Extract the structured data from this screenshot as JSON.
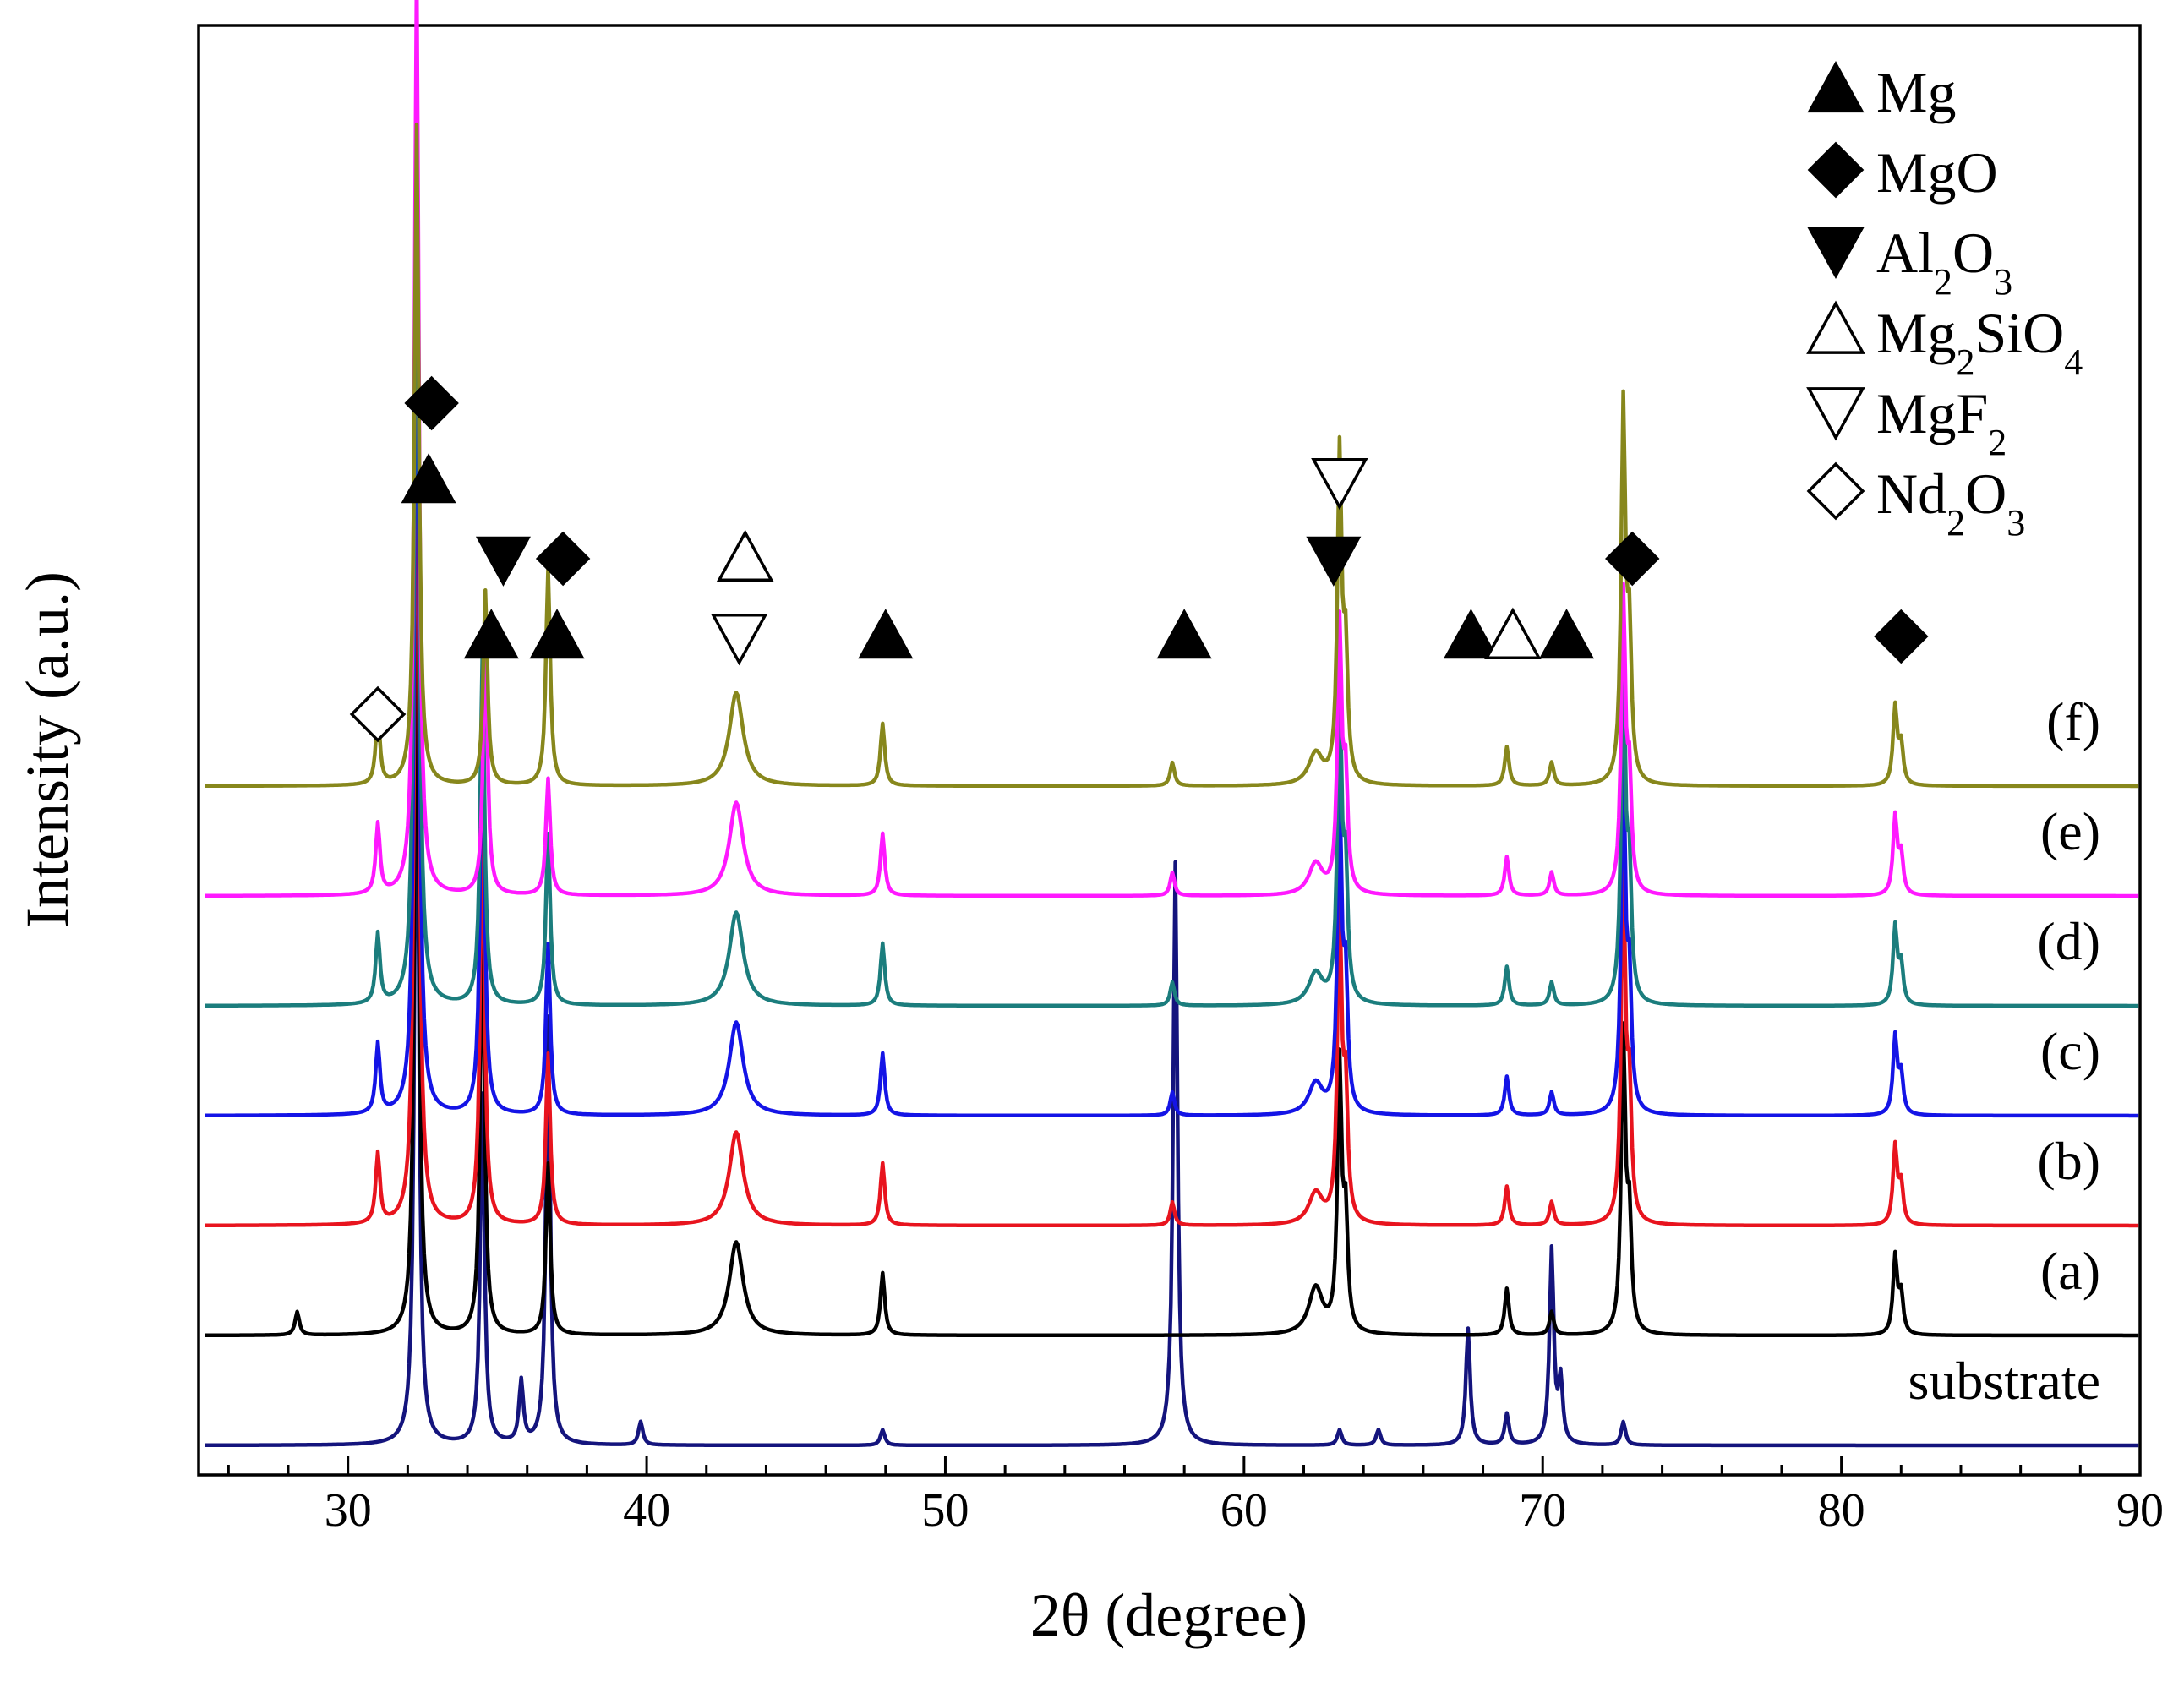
{
  "chart_data": {
    "type": "line",
    "title": "",
    "xlabel": "2θ  (degree)",
    "ylabel": "Intensity (a.u.)",
    "xlim": [
      25,
      90
    ],
    "xticks": [
      30,
      40,
      50,
      60,
      70,
      80,
      90
    ],
    "grid": false,
    "series": [
      {
        "name": "substrate",
        "label": "substrate",
        "color": "#14147d",
        "offset": 0,
        "peaks": [
          [
            32.3,
            100
          ],
          [
            34.5,
            45
          ],
          [
            35.8,
            8
          ],
          [
            36.7,
            55
          ],
          [
            39.8,
            3
          ],
          [
            47.9,
            2
          ],
          [
            57.7,
            75
          ],
          [
            63.2,
            2
          ],
          [
            64.5,
            2
          ],
          [
            67.5,
            15
          ],
          [
            68.8,
            4
          ],
          [
            70.3,
            25
          ],
          [
            70.6,
            8
          ],
          [
            72.7,
            3
          ]
        ]
      },
      {
        "name": "a",
        "label": "(a)",
        "color": "#000000",
        "offset": 1,
        "peaks": [
          [
            28.3,
            3
          ],
          [
            32.3,
            100
          ],
          [
            34.5,
            55
          ],
          [
            36.7,
            22
          ],
          [
            43.0,
            12
          ],
          [
            47.9,
            8
          ],
          [
            62.4,
            6
          ],
          [
            63.2,
            34
          ],
          [
            63.4,
            14
          ],
          [
            68.8,
            6
          ],
          [
            70.3,
            3
          ],
          [
            72.7,
            38
          ],
          [
            72.9,
            14
          ],
          [
            81.8,
            10
          ],
          [
            82.0,
            5
          ]
        ]
      },
      {
        "name": "b",
        "label": "(b)",
        "color": "#e8141e",
        "offset": 2,
        "peaks": [
          [
            31.0,
            9
          ],
          [
            32.3,
            120
          ],
          [
            34.5,
            55
          ],
          [
            36.7,
            22
          ],
          [
            43.0,
            12
          ],
          [
            47.9,
            8
          ],
          [
            57.6,
            3
          ],
          [
            62.4,
            4
          ],
          [
            63.2,
            40
          ],
          [
            63.4,
            16
          ],
          [
            68.8,
            5
          ],
          [
            70.3,
            3
          ],
          [
            72.7,
            44
          ],
          [
            72.9,
            16
          ],
          [
            81.8,
            10
          ],
          [
            82.0,
            5
          ]
        ]
      },
      {
        "name": "c",
        "label": "(c)",
        "color": "#1414e6",
        "offset": 3,
        "peaks": [
          [
            31.0,
            9
          ],
          [
            32.3,
            120
          ],
          [
            34.5,
            55
          ],
          [
            36.7,
            22
          ],
          [
            43.0,
            12
          ],
          [
            47.9,
            8
          ],
          [
            57.6,
            3
          ],
          [
            62.4,
            4
          ],
          [
            63.2,
            40
          ],
          [
            63.4,
            16
          ],
          [
            68.8,
            5
          ],
          [
            70.3,
            3
          ],
          [
            72.7,
            44
          ],
          [
            72.9,
            16
          ],
          [
            81.8,
            10
          ],
          [
            82.0,
            5
          ]
        ]
      },
      {
        "name": "d",
        "label": "(d)",
        "color": "#1b7d7d",
        "offset": 4,
        "peaks": [
          [
            31.0,
            9
          ],
          [
            32.3,
            120
          ],
          [
            34.5,
            45
          ],
          [
            36.7,
            22
          ],
          [
            43.0,
            12
          ],
          [
            47.9,
            8
          ],
          [
            57.6,
            3
          ],
          [
            62.4,
            4
          ],
          [
            63.2,
            40
          ],
          [
            63.4,
            16
          ],
          [
            68.8,
            5
          ],
          [
            70.3,
            3
          ],
          [
            72.7,
            44
          ],
          [
            72.9,
            16
          ],
          [
            81.8,
            10
          ],
          [
            82.0,
            5
          ]
        ]
      },
      {
        "name": "e",
        "label": "(e)",
        "color": "#ff19ff",
        "offset": 5,
        "peaks": [
          [
            31.0,
            9
          ],
          [
            32.3,
            120
          ],
          [
            34.6,
            35
          ],
          [
            36.7,
            15
          ],
          [
            43.0,
            12
          ],
          [
            47.9,
            8
          ],
          [
            57.6,
            3
          ],
          [
            62.4,
            4
          ],
          [
            63.2,
            34
          ],
          [
            63.4,
            14
          ],
          [
            68.8,
            5
          ],
          [
            70.3,
            3
          ],
          [
            72.7,
            38
          ],
          [
            72.9,
            14
          ],
          [
            81.8,
            10
          ],
          [
            82.0,
            5
          ]
        ]
      },
      {
        "name": "f",
        "label": "(f)",
        "color": "#87871c",
        "offset": 6,
        "peaks": [
          [
            31.0,
            9
          ],
          [
            32.3,
            85
          ],
          [
            34.6,
            25
          ],
          [
            36.7,
            28
          ],
          [
            43.0,
            12
          ],
          [
            47.9,
            8
          ],
          [
            57.6,
            3
          ],
          [
            62.4,
            4
          ],
          [
            63.2,
            42
          ],
          [
            63.4,
            16
          ],
          [
            68.8,
            5
          ],
          [
            70.3,
            3
          ],
          [
            72.7,
            48
          ],
          [
            72.9,
            18
          ],
          [
            81.8,
            10
          ],
          [
            82.0,
            5
          ]
        ]
      }
    ],
    "annotations": [
      {
        "phase": "MgO",
        "symbol": "diamond-filled",
        "x": 32.8,
        "level": 4
      },
      {
        "phase": "Mg",
        "symbol": "triangle-up-filled",
        "x": 32.7,
        "level": 3
      },
      {
        "phase": "Al2O3",
        "symbol": "triangle-down-filled",
        "x": 35.2,
        "level": 2
      },
      {
        "phase": "MgO",
        "symbol": "diamond-filled",
        "x": 37.2,
        "level": 2
      },
      {
        "phase": "Mg",
        "symbol": "triangle-up-filled",
        "x": 34.8,
        "level": 1
      },
      {
        "phase": "Mg",
        "symbol": "triangle-up-filled",
        "x": 37.0,
        "level": 1
      },
      {
        "phase": "Nd2O3",
        "symbol": "diamond-open",
        "x": 31.0,
        "level": 0
      },
      {
        "phase": "Mg2SiO4",
        "symbol": "triangle-up-open",
        "x": 43.3,
        "level": 2
      },
      {
        "phase": "MgF2",
        "symbol": "triangle-down-open",
        "x": 43.1,
        "level": 1
      },
      {
        "phase": "Mg",
        "symbol": "triangle-up-filled",
        "x": 48.0,
        "level": 1
      },
      {
        "phase": "Mg",
        "symbol": "triangle-up-filled",
        "x": 58.0,
        "level": 1
      },
      {
        "phase": "MgF2",
        "symbol": "triangle-down-open",
        "x": 63.2,
        "level": 3
      },
      {
        "phase": "Al2O3",
        "symbol": "triangle-down-filled",
        "x": 63.0,
        "level": 2
      },
      {
        "phase": "Mg",
        "symbol": "triangle-up-filled",
        "x": 67.6,
        "level": 1
      },
      {
        "phase": "Mg2SiO4",
        "symbol": "triangle-up-open",
        "x": 69.0,
        "level": 1
      },
      {
        "phase": "Mg",
        "symbol": "triangle-up-filled",
        "x": 70.8,
        "level": 1
      },
      {
        "phase": "MgO",
        "symbol": "diamond-filled",
        "x": 73.0,
        "level": 2
      },
      {
        "phase": "MgO",
        "symbol": "diamond-filled",
        "x": 82.0,
        "level": 1
      }
    ],
    "legend": {
      "position": "top-right",
      "entries": [
        {
          "symbol": "triangle-up-filled",
          "text": "Mg",
          "sub": []
        },
        {
          "symbol": "diamond-filled",
          "text": "MgO",
          "sub": []
        },
        {
          "symbol": "triangle-down-filled",
          "text": "Al2O3",
          "parts": [
            "Al",
            "2",
            "O",
            "3"
          ]
        },
        {
          "symbol": "triangle-up-open",
          "text": "Mg2SiO4",
          "parts": [
            "Mg",
            "2",
            "SiO",
            "4"
          ]
        },
        {
          "symbol": "triangle-down-open",
          "text": "MgF2",
          "parts": [
            "MgF",
            "2"
          ]
        },
        {
          "symbol": "diamond-open",
          "text": "Nd2O3",
          "parts": [
            "Nd",
            "2",
            "O",
            "3"
          ]
        }
      ]
    }
  }
}
